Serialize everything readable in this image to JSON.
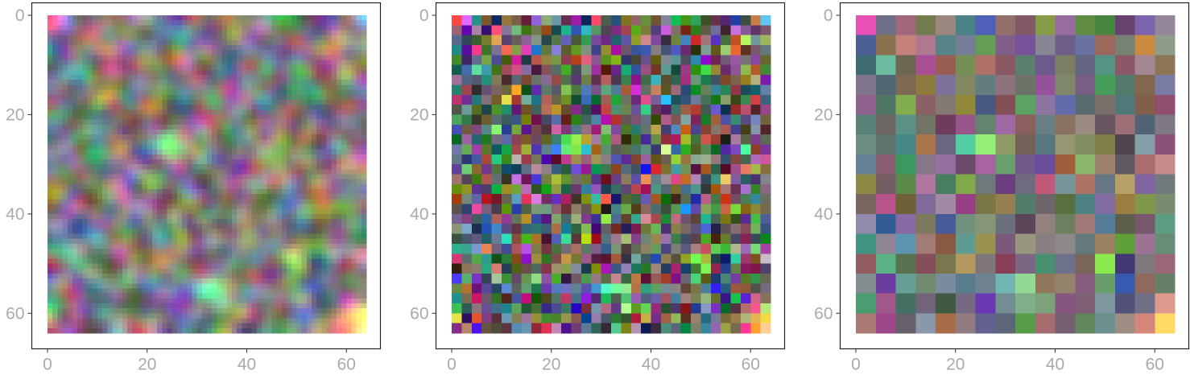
{
  "chart_data": [
    {
      "type": "heatmap",
      "resolution": 64,
      "texture": "smooth",
      "xlim": [
        0,
        64
      ],
      "ylim": [
        0,
        64
      ],
      "y_inverted": true,
      "x_ticks": [
        "0",
        "20",
        "40",
        "60"
      ],
      "y_ticks": [
        "0",
        "20",
        "40",
        "60"
      ],
      "title": "",
      "xlabel": "",
      "ylabel": ""
    },
    {
      "type": "heatmap",
      "resolution": 32,
      "texture": "pixelated",
      "xlim": [
        0,
        64
      ],
      "ylim": [
        0,
        64
      ],
      "y_inverted": true,
      "x_ticks": [
        "0",
        "20",
        "40",
        "60"
      ],
      "y_ticks": [
        "0",
        "20",
        "40",
        "60"
      ],
      "title": "",
      "xlabel": "",
      "ylabel": ""
    },
    {
      "type": "heatmap",
      "resolution": 16,
      "texture": "pixelated",
      "xlim": [
        0,
        64
      ],
      "ylim": [
        0,
        64
      ],
      "y_inverted": true,
      "x_ticks": [
        "0",
        "20",
        "40",
        "60"
      ],
      "y_ticks": [
        "0",
        "20",
        "40",
        "60"
      ],
      "title": "",
      "xlabel": "",
      "ylabel": ""
    }
  ],
  "colors": {
    "frame": "#222222",
    "tick_label": "#aaaaaa",
    "tick": "#333333",
    "background": "#ffffff"
  }
}
